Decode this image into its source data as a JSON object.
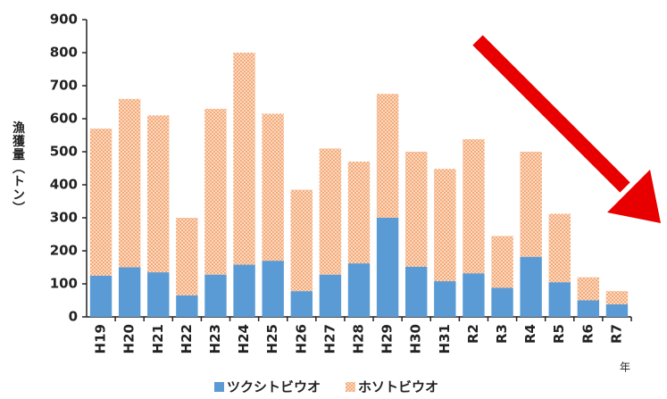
{
  "chart_data": {
    "type": "stacked_bar",
    "y_label": "漁獲量（トン）",
    "x_label": "年",
    "categories": [
      "H19",
      "H20",
      "H21",
      "H22",
      "H23",
      "H24",
      "H25",
      "H26",
      "H27",
      "H28",
      "H29",
      "H30",
      "H31",
      "R2",
      "R3",
      "R4",
      "R5",
      "R6",
      "R7"
    ],
    "series": [
      {
        "name": "ツクシトビウオ",
        "color": "#5b9bd5",
        "values": [
          125,
          150,
          135,
          65,
          128,
          158,
          170,
          78,
          128,
          162,
          300,
          152,
          108,
          132,
          88,
          182,
          105,
          50,
          38
        ]
      },
      {
        "name": "ホソトビウオ",
        "color": "#f4a26a",
        "values": [
          445,
          510,
          475,
          235,
          502,
          642,
          445,
          307,
          382,
          308,
          375,
          348,
          340,
          406,
          157,
          318,
          207,
          70,
          40
        ]
      }
    ],
    "ylim": [
      0,
      900
    ],
    "yticks": [
      0,
      100,
      200,
      300,
      400,
      500,
      600,
      700,
      800,
      900
    ],
    "grid": false,
    "legend": "bottom"
  }
}
